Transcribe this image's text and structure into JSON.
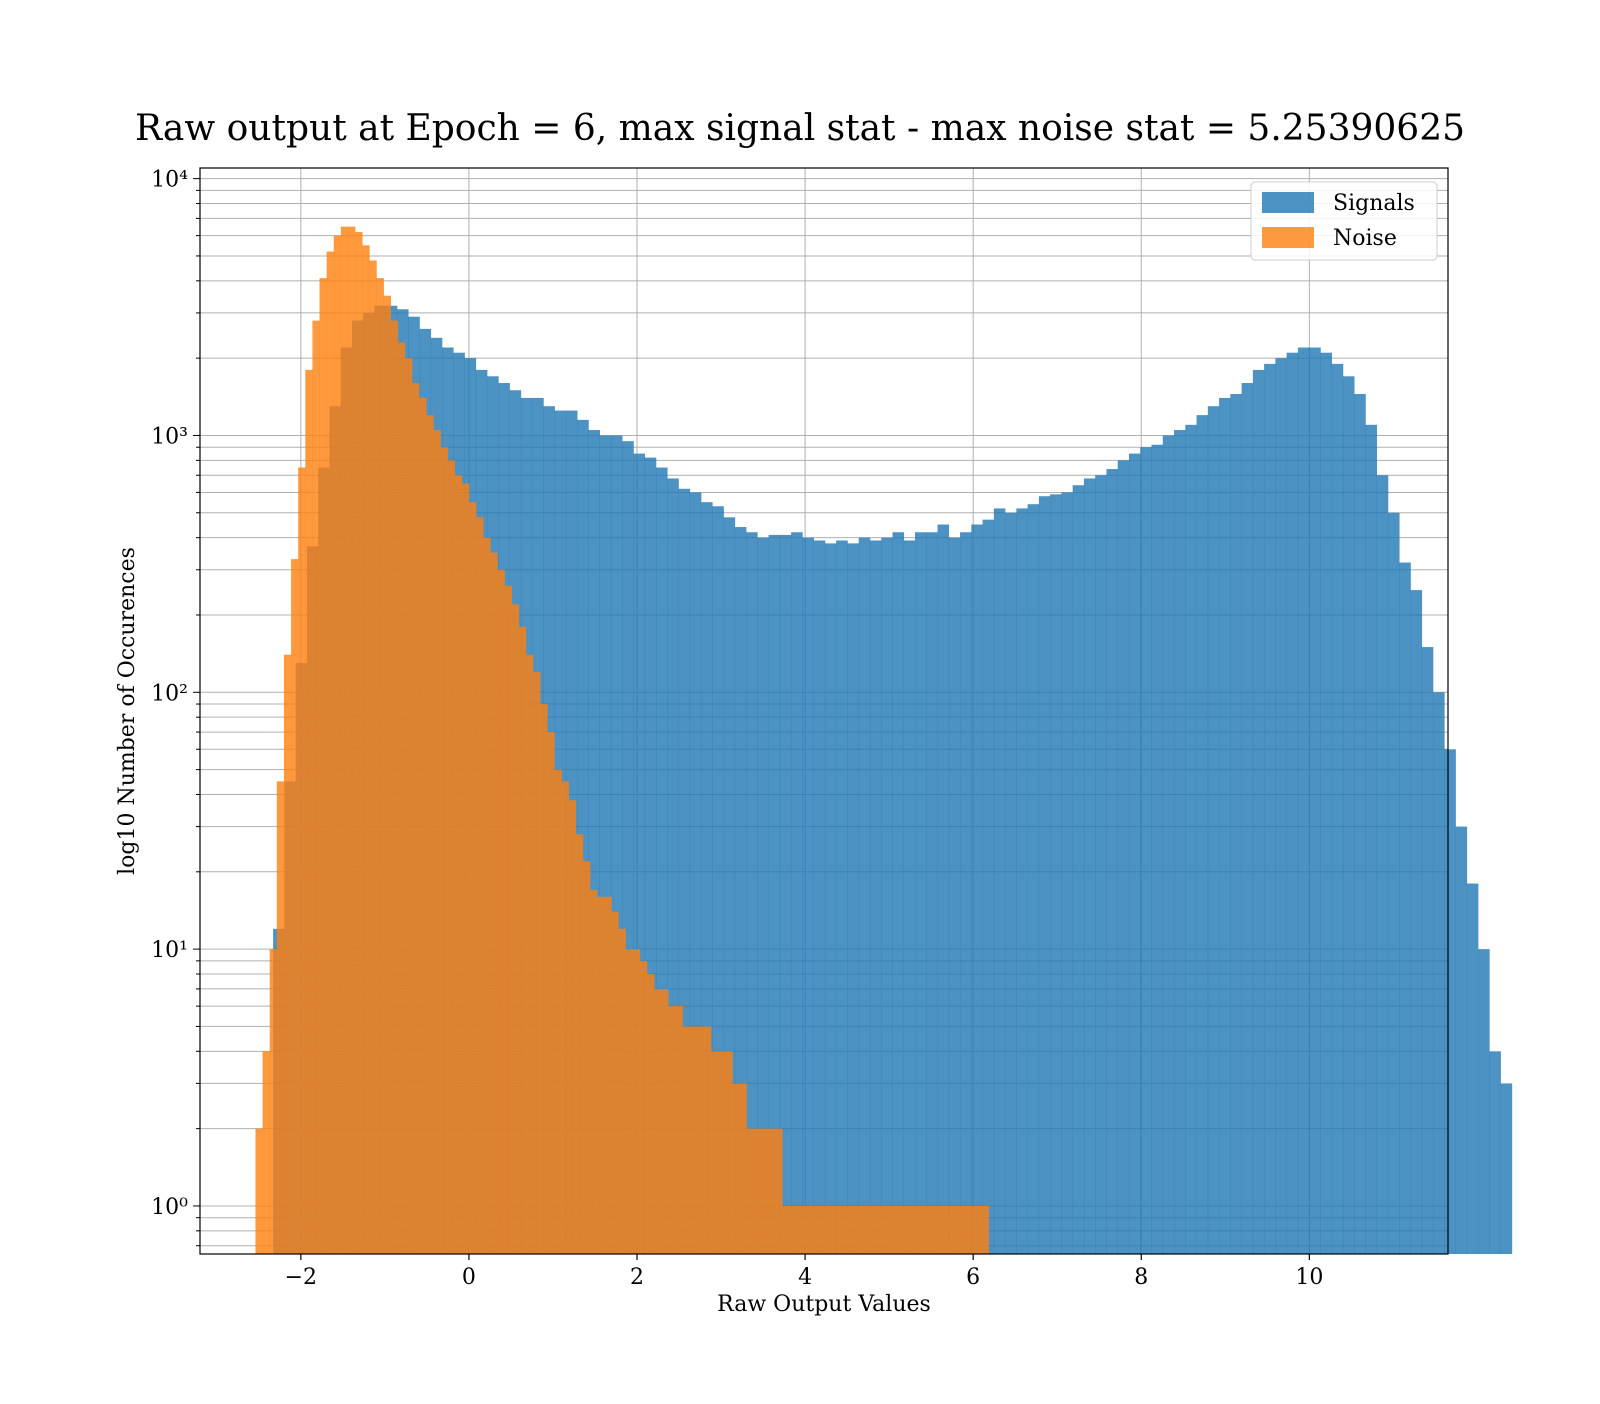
{
  "chart_data": {
    "type": "bar",
    "title": "Raw output at Epoch = 6, max signal stat - max noise stat = 5.25390625",
    "xlabel": "Raw Output Values",
    "ylabel": "log10 Number of Occurences",
    "yscale": "log",
    "xlim": [
      -3.2,
      11.65
    ],
    "ylim": [
      0.65,
      11000
    ],
    "x_ticks": [
      -2,
      0,
      2,
      4,
      6,
      8,
      10
    ],
    "x_tick_labels": [
      "−2",
      "0",
      "2",
      "4",
      "6",
      "8",
      "10"
    ],
    "y_ticks": [
      1,
      10,
      100,
      1000,
      10000
    ],
    "y_tick_labels": [
      "10⁰",
      "10¹",
      "10²",
      "10³",
      "10⁴"
    ],
    "grid": true,
    "legend_position": "top-right",
    "series": [
      {
        "name": "Signals",
        "color": "#1f77b4",
        "opacity": 0.8,
        "bin_start": -2.33,
        "bin_width": 0.134,
        "counts": [
          12,
          45,
          130,
          370,
          750,
          1300,
          2200,
          2800,
          3000,
          3200,
          3200,
          3100,
          2900,
          2600,
          2400,
          2200,
          2100,
          2000,
          1800,
          1700,
          1600,
          1500,
          1400,
          1400,
          1300,
          1250,
          1250,
          1150,
          1050,
          1000,
          1000,
          950,
          850,
          820,
          750,
          680,
          620,
          600,
          550,
          530,
          480,
          440,
          420,
          400,
          410,
          410,
          420,
          400,
          390,
          380,
          390,
          380,
          400,
          390,
          400,
          420,
          390,
          420,
          420,
          450,
          400,
          420,
          450,
          470,
          520,
          500,
          520,
          540,
          580,
          590,
          600,
          640,
          680,
          700,
          740,
          800,
          850,
          900,
          920,
          1000,
          1050,
          1100,
          1200,
          1300,
          1400,
          1450,
          1600,
          1800,
          1900,
          2000,
          2100,
          2200,
          2200,
          2100,
          1900,
          1700,
          1450,
          1100,
          700,
          500,
          320,
          250,
          150,
          100,
          60,
          30,
          18,
          10,
          4,
          3
        ]
      },
      {
        "name": "Noise",
        "color": "#ff7f0e",
        "opacity": 0.8,
        "bin_start": -2.54,
        "bin_width": 0.0847,
        "counts": [
          2,
          4,
          10,
          45,
          140,
          330,
          750,
          1800,
          2800,
          4100,
          5200,
          6000,
          6500,
          6500,
          6200,
          5500,
          4800,
          4100,
          3500,
          2800,
          2300,
          2000,
          1600,
          1400,
          1200,
          1050,
          900,
          800,
          700,
          650,
          550,
          480,
          400,
          350,
          300,
          260,
          220,
          180,
          140,
          120,
          90,
          70,
          50,
          45,
          38,
          28,
          22,
          17,
          16,
          16,
          14,
          12,
          10,
          10,
          9,
          8,
          7,
          7,
          6,
          6,
          5,
          5,
          5,
          5,
          4,
          4,
          4,
          3,
          3,
          2,
          2,
          2,
          2,
          2,
          1,
          1,
          1,
          1,
          1,
          1,
          1,
          1,
          1,
          1,
          1,
          1,
          1,
          1,
          1,
          1,
          1,
          1,
          1,
          1,
          1,
          1,
          1,
          1,
          1,
          1,
          1,
          1,
          1,
          0,
          0,
          0,
          0,
          0,
          0,
          0,
          0,
          0,
          0,
          0,
          0,
          0,
          0,
          0
        ]
      }
    ]
  }
}
